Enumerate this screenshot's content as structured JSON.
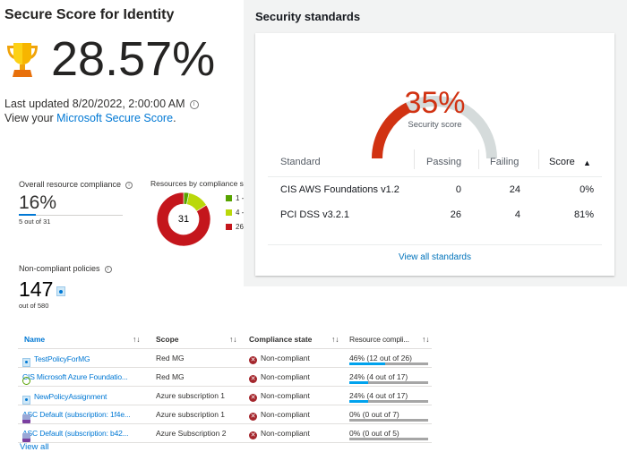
{
  "identity": {
    "title": "Secure Score for Identity",
    "score": "28.57%",
    "last_updated": "Last updated 8/20/2022, 2:00:00 AM",
    "view_prefix": "View your ",
    "view_link": "Microsoft Secure Score",
    "view_suffix": ".",
    "icon": "trophy-icon"
  },
  "aws": {
    "title": "Security standards",
    "score": "35%",
    "score_value": 35,
    "score_label": "Security score",
    "columns": [
      "Standard",
      "Passing",
      "Failing",
      "Score"
    ],
    "sort_indicator": "▲",
    "rows": [
      {
        "standard": "CIS AWS Foundations v1.2",
        "passing": "0",
        "failing": "24",
        "score": "0%"
      },
      {
        "standard": "PCI DSS v3.2.1",
        "passing": "26",
        "failing": "4",
        "score": "81%"
      }
    ],
    "view_all": "View all standards",
    "colors": {
      "gauge_fill": "#d13212",
      "gauge_track": "#d5dbdb"
    }
  },
  "compliance": {
    "label": "Overall resource compliance",
    "value": "16%",
    "fraction": 0.16,
    "sub": "5 out of 31",
    "donut_title": "Resources by compliance st",
    "donut_total": "31",
    "donut": [
      {
        "label": "1 -",
        "value": 1,
        "color": "#57a300"
      },
      {
        "label": "4 -",
        "value": 4,
        "color": "#bad80a"
      },
      {
        "label": "26",
        "value": 26,
        "color": "#c4161c"
      }
    ],
    "policies_label": "Non-compliant policies",
    "policies_value": "147",
    "policies_sub": "out of 580"
  },
  "table": {
    "columns": [
      "Name",
      "Scope",
      "Compliance state",
      "Resource compli..."
    ],
    "sort_icon": "↑↓",
    "rows": [
      {
        "name": "TestPolicyForMG",
        "icon": "assignment-icon",
        "scope": "Red MG",
        "state": "Non-compliant",
        "resource": "46% (12 out of 26)",
        "pct": 46
      },
      {
        "name": "CIS Microsoft Azure Foundatio...",
        "icon": "initiative-icon",
        "scope": "Red MG",
        "state": "Non-compliant",
        "resource": "24% (4 out of 17)",
        "pct": 24
      },
      {
        "name": "NewPolicyAssignment",
        "icon": "assignment-icon",
        "scope": "Azure subscription 1",
        "state": "Non-compliant",
        "resource": "24% (4 out of 17)",
        "pct": 24
      },
      {
        "name": "ASC Default (subscription: 1f4e...",
        "icon": "security-center-icon",
        "scope": "Azure subscription 1",
        "state": "Non-compliant",
        "resource": "0% (0 out of 7)",
        "pct": 0
      },
      {
        "name": "ASC Default (subscription: b42...",
        "icon": "security-center-icon",
        "scope": "Azure Subscription 2",
        "state": "Non-compliant",
        "resource": "0% (0 out of 5)",
        "pct": 0
      }
    ],
    "view_all": "View all"
  }
}
